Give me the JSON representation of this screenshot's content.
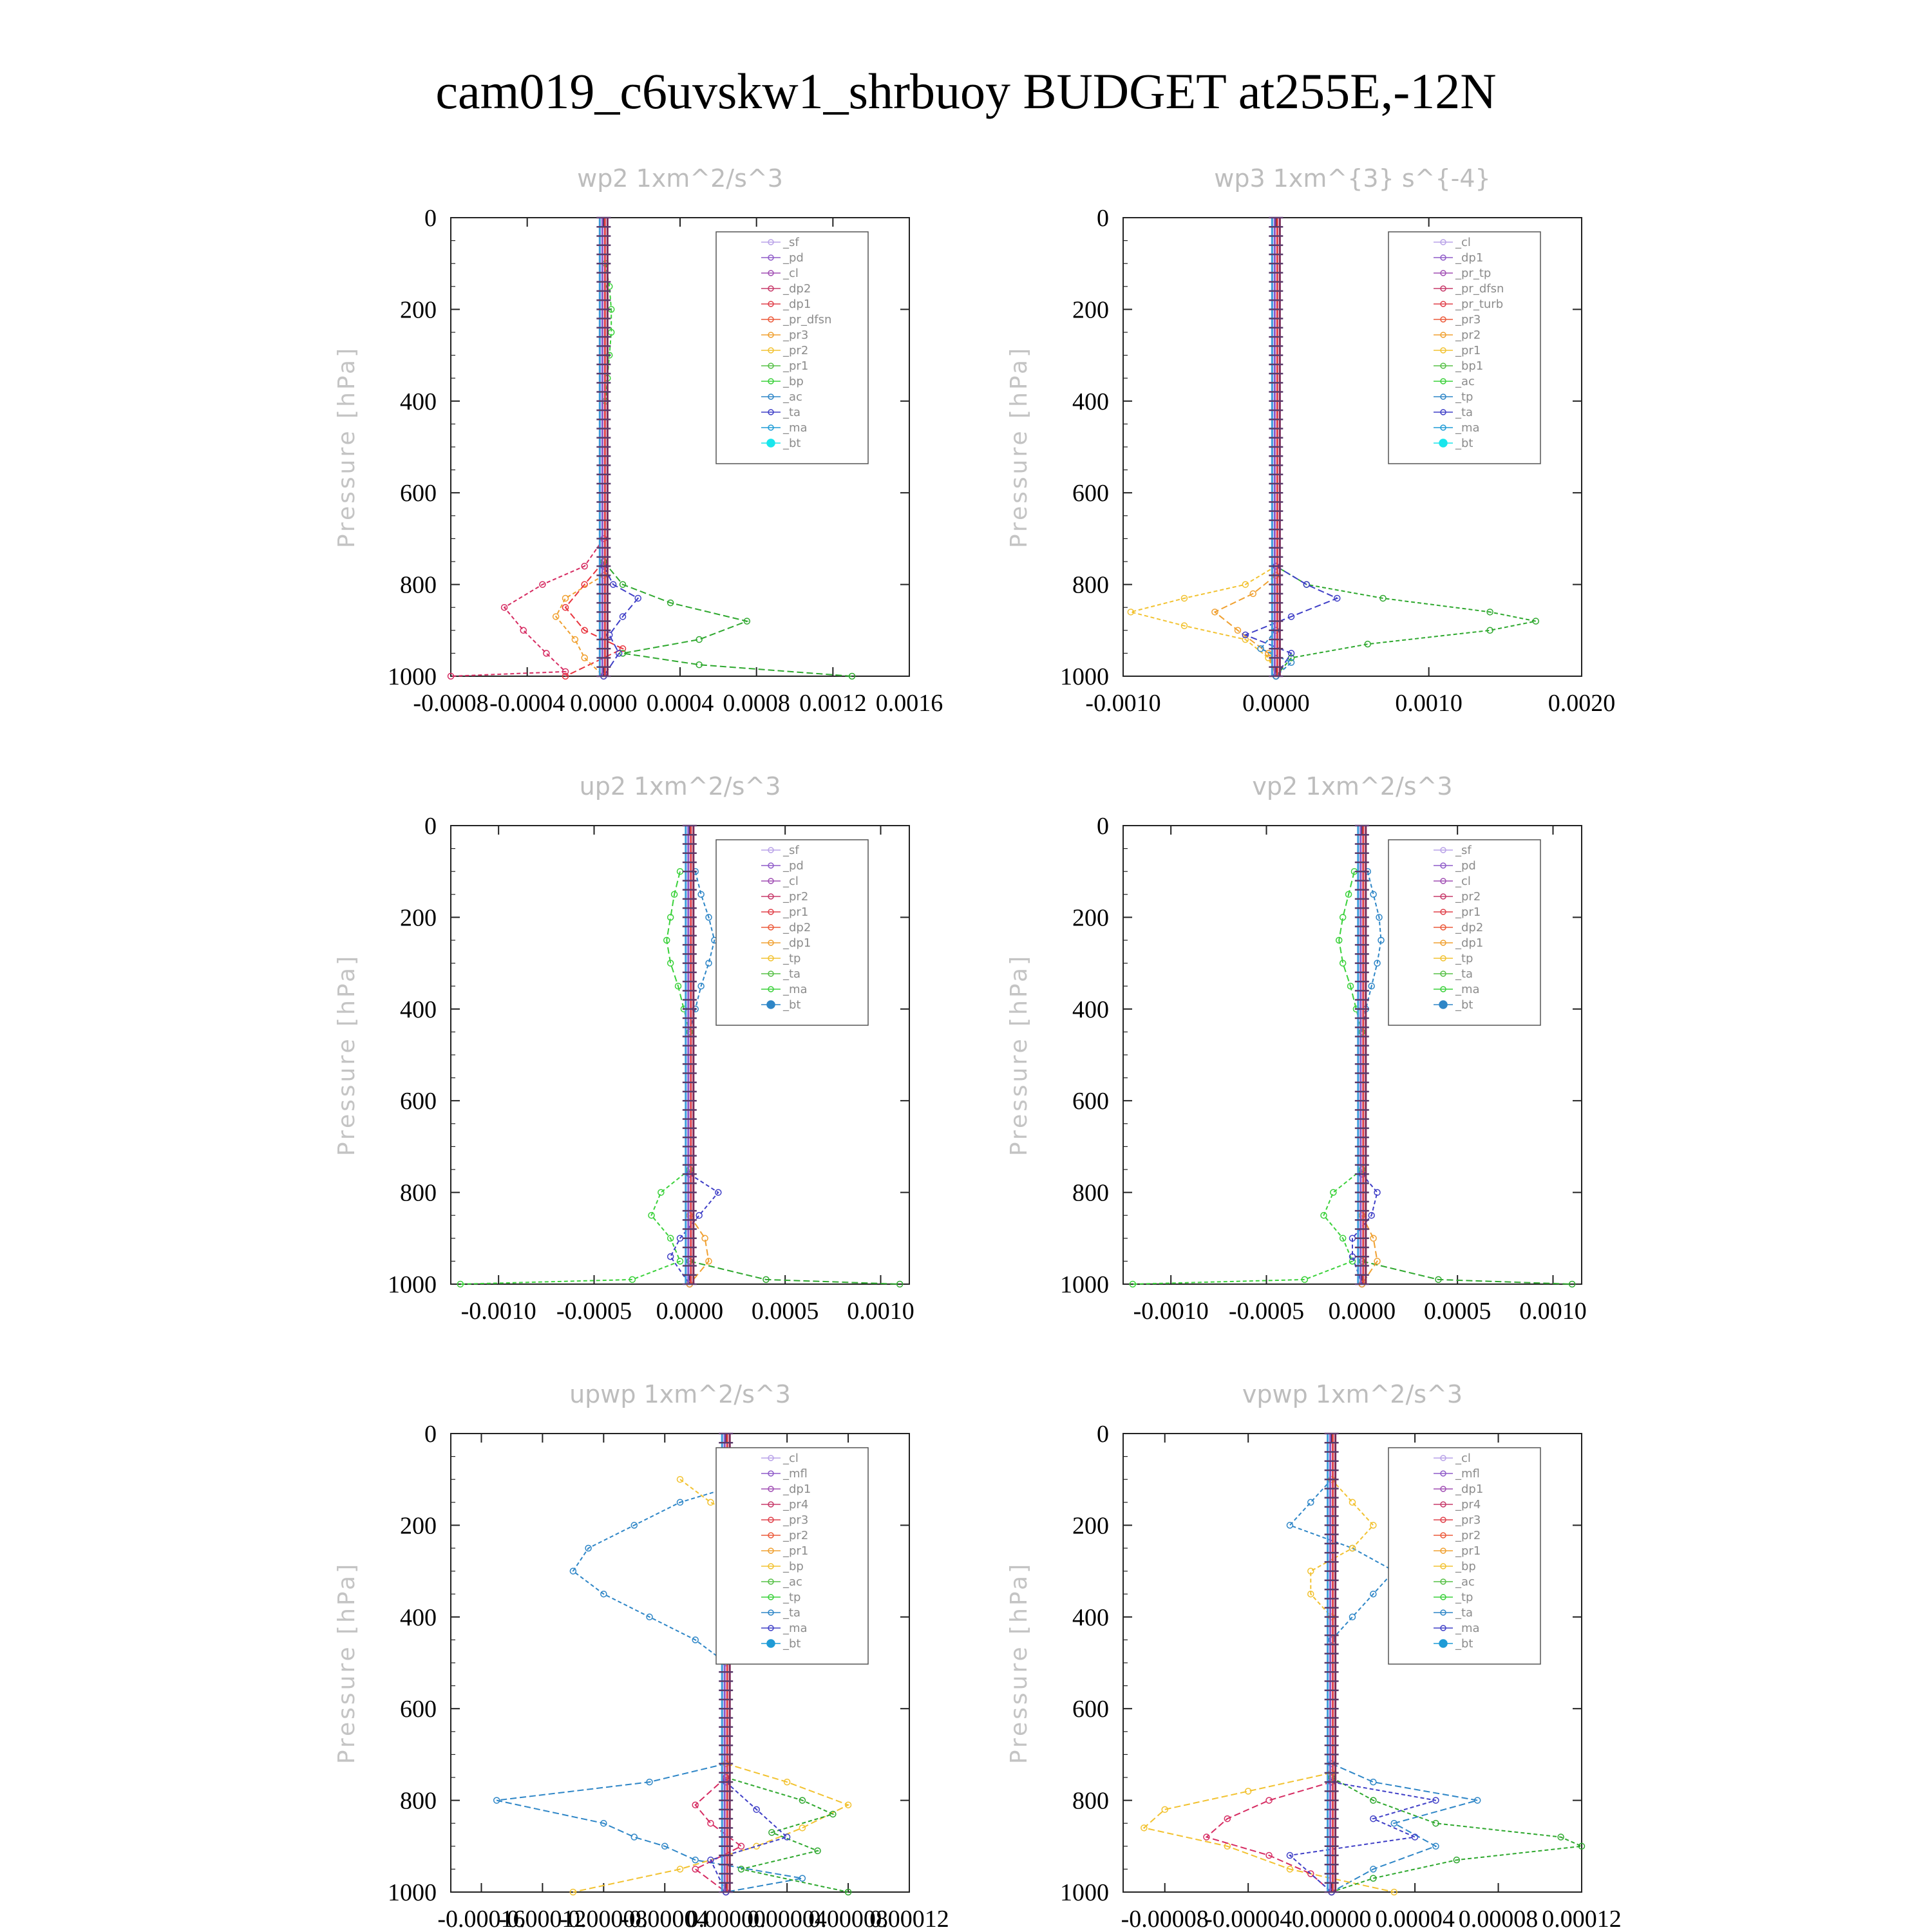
{
  "figure": {
    "title": "cam019_c6uvskw1_shrbuoy  BUDGET at255E,-12N"
  },
  "chart_data": [
    {
      "type": "line",
      "title": "wp2  1xm^2/s^3",
      "ylabel": "Pressure [hPa]",
      "ylim": [
        0,
        1000
      ],
      "y_inverted": true,
      "yticks": [
        "0",
        "200",
        "400",
        "600",
        "800",
        "1000"
      ],
      "xlim": [
        -0.0008,
        0.0016
      ],
      "xticks": [
        "-0.0008",
        "-0.0004",
        "0.0000",
        "0.0004",
        "0.0008",
        "0.0012",
        "0.0016"
      ],
      "legend_placement": "top-right",
      "legend": [
        "_sf",
        "_pd",
        "_cl",
        "_dp2",
        "_dp1",
        "_pr_dfsn",
        "_pr3",
        "_pr2",
        "_pr1",
        "_bp",
        "_ac",
        "_ta",
        "_ma",
        "_bt"
      ],
      "series": [
        {
          "name": "_dp2",
          "color": "#d62c62",
          "y": [
            700,
            760,
            800,
            850,
            900,
            950,
            990,
            1000
          ],
          "values": [
            0,
            -0.0001,
            -0.00032,
            -0.00052,
            -0.00042,
            -0.0003,
            -0.0002,
            -0.0008
          ]
        },
        {
          "name": "_dp1",
          "color": "#e8343e",
          "y": [
            750,
            800,
            850,
            900,
            940,
            1000
          ],
          "values": [
            0,
            -0.0001,
            -0.0002,
            -0.0001,
            0.0001,
            -0.0002
          ]
        },
        {
          "name": "_pr3",
          "color": "#f0a030",
          "y": [
            780,
            830,
            870,
            920,
            960,
            1000
          ],
          "values": [
            0,
            -0.0002,
            -0.00025,
            -0.00015,
            -0.0001,
            0
          ]
        },
        {
          "name": "_bp",
          "color": "#2ea82e",
          "y": [
            750,
            800,
            840,
            880,
            920,
            950,
            975,
            1000
          ],
          "values": [
            0,
            0.0001,
            0.00035,
            0.00075,
            0.0005,
            0.0001,
            0.0005,
            0.0013
          ]
        },
        {
          "name": "_ac",
          "color": "#3ad13a",
          "y": [
            100,
            150,
            200,
            250,
            300,
            350,
            400
          ],
          "values": [
            1e-05,
            3e-05,
            4e-05,
            4e-05,
            3e-05,
            2e-05,
            1e-05
          ]
        },
        {
          "name": "_ta",
          "color": "#3f3fc7",
          "y": [
            760,
            800,
            830,
            870,
            910,
            950,
            1000
          ],
          "values": [
            0,
            5e-05,
            0.00018,
            0.0001,
            3e-05,
            8e-05,
            0
          ]
        }
      ]
    },
    {
      "type": "line",
      "title": "wp3  1xm^{3} s^{-4}",
      "ylabel": "Pressure [hPa]",
      "ylim": [
        0,
        1000
      ],
      "y_inverted": true,
      "yticks": [
        "0",
        "200",
        "400",
        "600",
        "800",
        "1000"
      ],
      "xlim": [
        -0.001,
        0.002
      ],
      "xticks": [
        "-0.0010",
        "0.0000",
        "0.0010",
        "0.0020"
      ],
      "legend_placement": "top-right",
      "legend": [
        "_cl",
        "_dp1",
        "_pr_tp",
        "_pr_dfsn",
        "_pr_turb",
        "_pr3",
        "_pr2",
        "_pr1",
        "_bp1",
        "_ac",
        "_tp",
        "_ta",
        "_ma",
        "_bt"
      ],
      "series": [
        {
          "name": "_pr1",
          "color": "#f2c230",
          "y": [
            760,
            800,
            830,
            860,
            890,
            920,
            960,
            1000
          ],
          "values": [
            0,
            -0.0002,
            -0.0006,
            -0.00095,
            -0.0006,
            -0.0002,
            -5e-05,
            0
          ]
        },
        {
          "name": "_pr2",
          "color": "#f0a030",
          "y": [
            780,
            820,
            860,
            900,
            950,
            1000
          ],
          "values": [
            0,
            -0.00015,
            -0.0004,
            -0.00025,
            -5e-05,
            0
          ]
        },
        {
          "name": "_bp1",
          "color": "#2ea82e",
          "y": [
            760,
            800,
            830,
            860,
            880,
            900,
            930,
            960,
            1000
          ],
          "values": [
            0,
            0.0002,
            0.0007,
            0.0014,
            0.0017,
            0.0014,
            0.0006,
            0.0001,
            0
          ]
        },
        {
          "name": "_ta",
          "color": "#3f3fc7",
          "y": [
            760,
            800,
            830,
            870,
            910,
            950,
            1000
          ],
          "values": [
            0,
            0.0002,
            0.0004,
            0.0001,
            -0.0002,
            0.0001,
            0
          ]
        },
        {
          "name": "_tp",
          "color": "#2e86c7",
          "y": [
            900,
            940,
            970,
            1000
          ],
          "values": [
            0,
            -0.0001,
            0.0001,
            0
          ]
        }
      ]
    },
    {
      "type": "line",
      "title": "up2  1xm^2/s^3",
      "ylabel": "Pressure [hPa]",
      "ylim": [
        0,
        1000
      ],
      "y_inverted": true,
      "yticks": [
        "0",
        "200",
        "400",
        "600",
        "800",
        "1000"
      ],
      "xlim": [
        -0.00125,
        0.00115
      ],
      "xticks": [
        "-0.0010",
        "-0.0005",
        "0.0000",
        "0.0005",
        "0.0010"
      ],
      "legend_placement": "top-right",
      "legend": [
        "_sf",
        "_pd",
        "_cl",
        "_pr2",
        "_pr1",
        "_dp2",
        "_dp1",
        "_tp",
        "_ta",
        "_ma",
        "_bt"
      ],
      "series": [
        {
          "name": "_tp",
          "color": "#2e86c7",
          "y": [
            100,
            150,
            200,
            250,
            300,
            350,
            400,
            450
          ],
          "values": [
            3e-05,
            6e-05,
            0.0001,
            0.00013,
            0.0001,
            6e-05,
            3e-05,
            0
          ]
        },
        {
          "name": "_dp1",
          "color": "#3ad13a",
          "y": [
            100,
            150,
            200,
            250,
            300,
            350,
            400,
            450
          ],
          "values": [
            -5e-05,
            -8e-05,
            -0.0001,
            -0.00012,
            -0.0001,
            -6e-05,
            -3e-05,
            0
          ]
        },
        {
          "name": "_dp1 ",
          "color": "#3ad13a",
          "y": [
            750,
            800,
            850,
            900,
            950,
            990,
            1000
          ],
          "values": [
            0,
            -0.00015,
            -0.0002,
            -0.0001,
            -5e-05,
            -0.0003,
            -0.0012
          ]
        },
        {
          "name": "_dp2",
          "color": "#2ea82e",
          "y": [
            950,
            990,
            1000
          ],
          "values": [
            0,
            0.0004,
            0.0011
          ]
        },
        {
          "name": "_ta",
          "color": "#3f3fc7",
          "y": [
            760,
            800,
            850,
            900,
            940,
            1000
          ],
          "values": [
            0,
            0.00015,
            5e-05,
            -5e-05,
            -0.0001,
            0
          ]
        },
        {
          "name": "_pr2",
          "color": "#f0a030",
          "y": [
            850,
            900,
            950,
            1000
          ],
          "values": [
            0,
            8e-05,
            0.0001,
            0
          ]
        }
      ]
    },
    {
      "type": "line",
      "title": "vp2  1xm^2/s^3",
      "ylabel": "Pressure [hPa]",
      "ylim": [
        0,
        1000
      ],
      "y_inverted": true,
      "yticks": [
        "0",
        "200",
        "400",
        "600",
        "800",
        "1000"
      ],
      "xlim": [
        -0.00125,
        0.00115
      ],
      "xticks": [
        "-0.0010",
        "-0.0005",
        "0.0000",
        "0.0005",
        "0.0010"
      ],
      "legend_placement": "top-right",
      "legend": [
        "_sf",
        "_pd",
        "_cl",
        "_pr2",
        "_pr1",
        "_dp2",
        "_dp1",
        "_tp",
        "_ta",
        "_ma",
        "_bt"
      ],
      "series": [
        {
          "name": "_tp",
          "color": "#2e86c7",
          "y": [
            100,
            150,
            200,
            250,
            300,
            350,
            400,
            450
          ],
          "values": [
            3e-05,
            6e-05,
            9e-05,
            0.0001,
            8e-05,
            5e-05,
            2e-05,
            0
          ]
        },
        {
          "name": "_dp1",
          "color": "#3ad13a",
          "y": [
            100,
            150,
            200,
            250,
            300,
            350,
            400,
            450
          ],
          "values": [
            -4e-05,
            -7e-05,
            -0.0001,
            -0.00012,
            -0.0001,
            -6e-05,
            -3e-05,
            0
          ]
        },
        {
          "name": "_dp1 ",
          "color": "#3ad13a",
          "y": [
            750,
            800,
            850,
            900,
            950,
            990,
            1000
          ],
          "values": [
            0,
            -0.00015,
            -0.0002,
            -0.0001,
            -5e-05,
            -0.0003,
            -0.0012
          ]
        },
        {
          "name": "_dp2",
          "color": "#2ea82e",
          "y": [
            950,
            990,
            1000
          ],
          "values": [
            0,
            0.0004,
            0.0011
          ]
        },
        {
          "name": "_ta",
          "color": "#3f3fc7",
          "y": [
            760,
            800,
            850,
            900,
            940,
            1000
          ],
          "values": [
            0,
            8e-05,
            5e-05,
            -5e-05,
            -5e-05,
            0
          ]
        },
        {
          "name": "_pr2",
          "color": "#f0a030",
          "y": [
            850,
            900,
            950,
            1000
          ],
          "values": [
            0,
            6e-05,
            8e-05,
            0
          ]
        }
      ]
    },
    {
      "type": "line",
      "title": "upwp  1xm^2/s^3",
      "ylabel": "Pressure [hPa]",
      "ylim": [
        0,
        1000
      ],
      "y_inverted": true,
      "yticks": [
        "0",
        "200",
        "400",
        "600",
        "800",
        "1000"
      ],
      "xlim": [
        -0.00018,
        0.00012
      ],
      "xticks": [
        "-0.00016",
        "-0.00012",
        "-0.00008",
        "-0.00004",
        "0.00000",
        "0.00004",
        "0.00008",
        "0.00012"
      ],
      "legend_placement": "top-right",
      "legend": [
        "_cl",
        "_mfl",
        "_dp1",
        "_pr4",
        "_pr3",
        "_pr2",
        "_pr1",
        "_bp",
        "_ac",
        "_tp",
        "_ta",
        "_ma",
        "_bt"
      ],
      "series": [
        {
          "name": "_tp",
          "color": "#2e86c7",
          "y": [
            100,
            150,
            200,
            250,
            300,
            350,
            400,
            450,
            500
          ],
          "values": [
            2e-05,
            -3e-05,
            -6e-05,
            -9e-05,
            -0.0001,
            -8e-05,
            -5e-05,
            -2e-05,
            0
          ]
        },
        {
          "name": "_tp ",
          "color": "#2e86c7",
          "y": [
            720,
            760,
            800,
            850,
            880,
            900,
            930,
            970,
            1000
          ],
          "values": [
            0,
            -5e-05,
            -0.00015,
            -8e-05,
            -6e-05,
            -4e-05,
            -2e-05,
            5e-05,
            0
          ]
        },
        {
          "name": "_pr1",
          "color": "#f2c230",
          "y": [
            100,
            150,
            200,
            250,
            300,
            350,
            400
          ],
          "values": [
            -3e-05,
            -1e-05,
            2e-05,
            3e-05,
            3e-05,
            2e-05,
            0
          ]
        },
        {
          "name": "_pr1 ",
          "color": "#f2c230",
          "y": [
            720,
            760,
            810,
            860,
            900,
            950,
            1000
          ],
          "values": [
            0,
            4e-05,
            8e-05,
            5e-05,
            2e-05,
            -3e-05,
            -0.0001
          ]
        },
        {
          "name": "_bp",
          "color": "#2ea82e",
          "y": [
            750,
            800,
            830,
            870,
            910,
            950,
            1000
          ],
          "values": [
            0,
            5e-05,
            7e-05,
            3e-05,
            6e-05,
            1e-05,
            8e-05
          ]
        },
        {
          "name": "_dp1",
          "color": "#d62c62",
          "y": [
            750,
            810,
            850,
            900,
            950,
            1000
          ],
          "values": [
            0,
            -2e-05,
            -1e-05,
            1e-05,
            -2e-05,
            0
          ]
        },
        {
          "name": "_ta",
          "color": "#3f3fc7",
          "y": [
            760,
            820,
            880,
            930,
            1000
          ],
          "values": [
            0,
            2e-05,
            4e-05,
            -1e-05,
            0
          ]
        }
      ]
    },
    {
      "type": "line",
      "title": "vpwp  1xm^2/s^3",
      "ylabel": "Pressure [hPa]",
      "ylim": [
        0,
        1000
      ],
      "y_inverted": true,
      "yticks": [
        "0",
        "200",
        "400",
        "600",
        "800",
        "1000"
      ],
      "xlim": [
        -0.0001,
        0.00012
      ],
      "xticks": [
        "-0.00008",
        "-0.00004",
        "0.00000",
        "0.00004",
        "0.00008",
        "0.00012"
      ],
      "legend_placement": "top-right",
      "legend": [
        "_cl",
        "_mfl",
        "_dp1",
        "_pr4",
        "_pr3",
        "_pr2",
        "_pr1",
        "_bp",
        "_ac",
        "_tp",
        "_ta",
        "_ma",
        "_bt"
      ],
      "series": [
        {
          "name": "_tp",
          "color": "#2e86c7",
          "y": [
            100,
            150,
            200,
            250,
            300,
            350,
            400,
            450
          ],
          "values": [
            0,
            -1e-05,
            -2e-05,
            1e-05,
            3e-05,
            2e-05,
            1e-05,
            0
          ]
        },
        {
          "name": "_tp ",
          "color": "#2e86c7",
          "y": [
            720,
            760,
            800,
            850,
            900,
            950,
            1000
          ],
          "values": [
            0,
            2e-05,
            7e-05,
            3e-05,
            5e-05,
            2e-05,
            0
          ]
        },
        {
          "name": "_pr1",
          "color": "#f2c230",
          "y": [
            100,
            150,
            200,
            250,
            300,
            350,
            400
          ],
          "values": [
            0,
            1e-05,
            2e-05,
            1e-05,
            -1e-05,
            -1e-05,
            0
          ]
        },
        {
          "name": "_pr1 ",
          "color": "#f2c230",
          "y": [
            740,
            780,
            820,
            860,
            900,
            950,
            1000
          ],
          "values": [
            0,
            -4e-05,
            -8e-05,
            -9e-05,
            -5e-05,
            -2e-05,
            3e-05
          ]
        },
        {
          "name": "_bp",
          "color": "#2ea82e",
          "y": [
            750,
            800,
            850,
            880,
            900,
            930,
            970,
            1000
          ],
          "values": [
            0,
            2e-05,
            5e-05,
            0.00011,
            0.00012,
            6e-05,
            2e-05,
            0
          ]
        },
        {
          "name": "_dp1",
          "color": "#d62c62",
          "y": [
            760,
            800,
            840,
            880,
            920,
            960,
            1000
          ],
          "values": [
            0,
            -3e-05,
            -5e-05,
            -6e-05,
            -3e-05,
            -1e-05,
            0
          ]
        },
        {
          "name": "_ta",
          "color": "#3f3fc7",
          "y": [
            760,
            800,
            840,
            880,
            920,
            1000
          ],
          "values": [
            0,
            5e-05,
            2e-05,
            4e-05,
            -2e-05,
            0
          ]
        }
      ]
    }
  ]
}
